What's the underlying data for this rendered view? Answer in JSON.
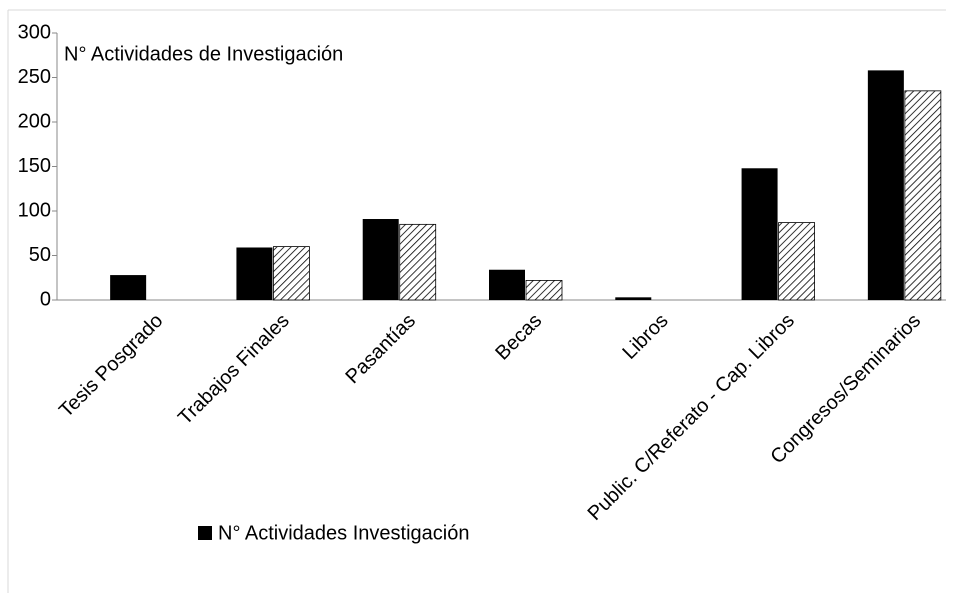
{
  "chart_data": {
    "type": "bar",
    "title": "N° Actividades  de Investigación",
    "categories": [
      "Tesis Posgrado",
      "Trabajos Finales",
      "Pasantías",
      "Becas",
      "Libros",
      "Public. C/Referato - Cap. Libros",
      "Congresos/Seminarios"
    ],
    "series": [
      {
        "name": "N° Actividades Investigación",
        "color": "#000000",
        "values": [
          28,
          59,
          91,
          34,
          3,
          148,
          258
        ]
      },
      {
        "color": "hatch",
        "values": [
          0,
          60,
          85,
          22,
          0,
          87,
          235
        ]
      }
    ],
    "ylim": [
      0,
      300
    ],
    "yticks": [
      0,
      50,
      100,
      150,
      200,
      250,
      300
    ],
    "grid": false,
    "legend": "bottom"
  }
}
